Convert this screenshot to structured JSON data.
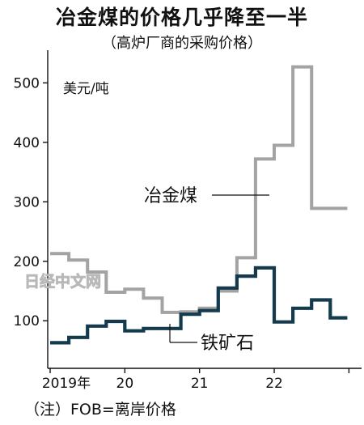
{
  "chart_data": {
    "type": "line",
    "title": "冶金煤的价格几乎降至一半",
    "subtitle": "（高炉厂商的采购价格）",
    "unit_label": "美元/吨",
    "note": "（注）FOB=离岸价格",
    "watermark": "日经中文网",
    "x_tick_labels": [
      "2019年",
      "20",
      "21",
      "22"
    ],
    "y_tick_labels": [
      "100",
      "200",
      "300",
      "400",
      "500"
    ],
    "ylim": [
      20,
      555
    ],
    "grid": false,
    "series": [
      {
        "name": "冶金煤",
        "style": "step",
        "color": "#a3a3a3",
        "values": [
          [
            2019.0,
            213
          ],
          [
            2019.25,
            202
          ],
          [
            2019.5,
            182
          ],
          [
            2019.75,
            148
          ],
          [
            2020.0,
            153
          ],
          [
            2020.25,
            138
          ],
          [
            2020.5,
            114
          ],
          [
            2020.75,
            115
          ],
          [
            2021.0,
            121
          ],
          [
            2021.25,
            150
          ],
          [
            2021.5,
            206
          ],
          [
            2021.75,
            372
          ],
          [
            2022.0,
            395
          ],
          [
            2022.25,
            527
          ],
          [
            2022.5,
            289
          ],
          [
            2022.75,
            289
          ]
        ]
      },
      {
        "name": "铁矿石",
        "style": "step",
        "color": "#143a4e",
        "values": [
          [
            2019.0,
            63
          ],
          [
            2019.25,
            72
          ],
          [
            2019.5,
            91
          ],
          [
            2019.75,
            99
          ],
          [
            2020.0,
            83
          ],
          [
            2020.25,
            87
          ],
          [
            2020.5,
            87
          ],
          [
            2020.75,
            111
          ],
          [
            2021.0,
            117
          ],
          [
            2021.25,
            155
          ],
          [
            2021.5,
            175
          ],
          [
            2021.75,
            189
          ],
          [
            2022.0,
            98
          ],
          [
            2022.25,
            121
          ],
          [
            2022.5,
            135
          ],
          [
            2022.75,
            105
          ]
        ]
      }
    ]
  }
}
